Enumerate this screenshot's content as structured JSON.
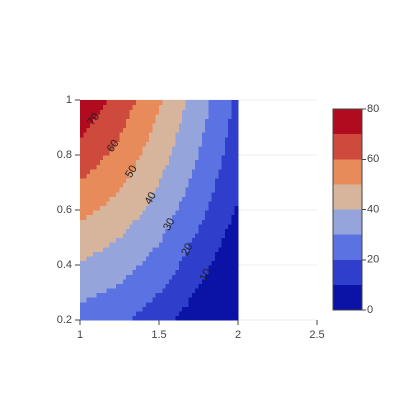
{
  "chart_data": {
    "type": "contour",
    "x": [
      1,
      1.25,
      1.5,
      1.75,
      2
    ],
    "y": [
      0.2,
      0.4,
      0.6,
      0.8,
      1
    ],
    "z": [
      [
        26,
        22,
        14,
        4,
        -7
      ],
      [
        39,
        34,
        26,
        14,
        1
      ],
      [
        53,
        46,
        36,
        23,
        9
      ],
      [
        66,
        57,
        44,
        30,
        14
      ],
      [
        78,
        66,
        51,
        35,
        18
      ]
    ],
    "contours": {
      "start": 0,
      "end": 80,
      "size": 10
    },
    "colors": [
      "#0a13a6",
      "#2f3fcb",
      "#5b72e2",
      "#95a5dc",
      "#d7b59d",
      "#e88b5b",
      "#cd4a3c",
      "#b00b1f"
    ],
    "contour_labels": [
      70,
      60,
      50,
      40,
      30,
      20,
      10
    ],
    "xlim": [
      1,
      2.5
    ],
    "xticks": [
      1,
      1.5,
      2,
      2.5
    ],
    "ylim": [
      0.2,
      1
    ],
    "yticks": [
      0.2,
      0.4,
      0.6,
      0.8,
      1
    ],
    "ygrid": true,
    "zlim": [
      0,
      80
    ],
    "colorbar_ticks": [
      0,
      20,
      40,
      60,
      80
    ]
  }
}
